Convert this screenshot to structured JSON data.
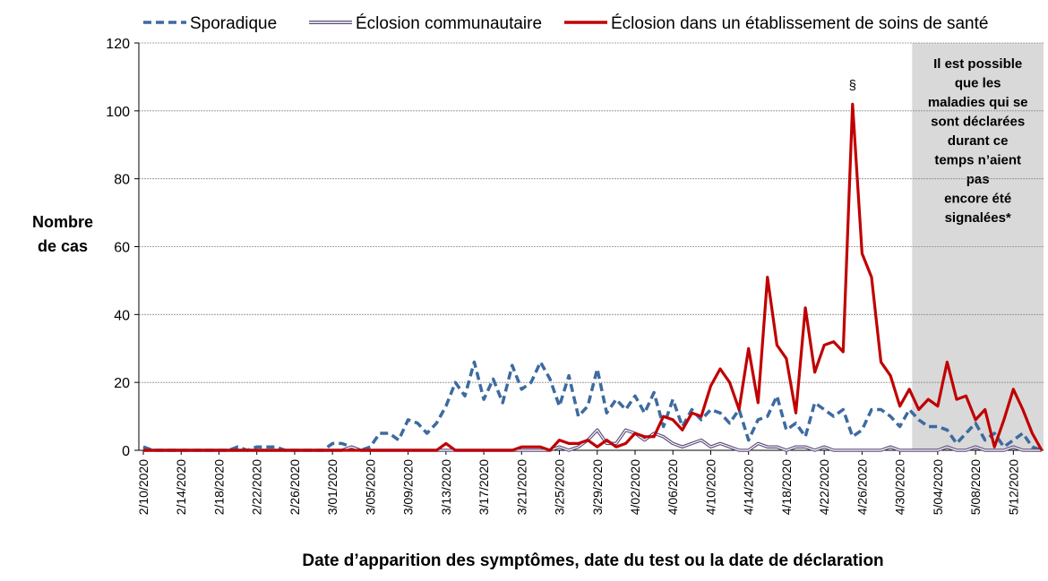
{
  "chart_data": {
    "type": "line",
    "x_label": "Date d’apparition des symptômes, date du test ou la date de déclaration",
    "y_label": [
      "Nombre",
      "de cas"
    ],
    "annotation": "§",
    "annotation_index": 75,
    "shaded_note": [
      "Il est possible",
      "que les",
      "maladies qui se",
      "sont déclarées",
      "durant ce",
      "temps n’aient",
      "pas",
      "encore été",
      "signalées*"
    ],
    "categories": [
      "2/10/2020",
      null,
      null,
      null,
      "2/14/2020",
      null,
      null,
      null,
      "2/18/2020",
      null,
      null,
      null,
      "2/22/2020",
      null,
      null,
      null,
      "2/26/2020",
      null,
      null,
      null,
      "3/01/2020",
      null,
      null,
      null,
      "3/05/2020",
      null,
      null,
      null,
      "3/09/2020",
      null,
      null,
      null,
      "3/13/2020",
      null,
      null,
      null,
      "3/17/2020",
      null,
      null,
      null,
      "3/21/2020",
      null,
      null,
      null,
      "3/25/2020",
      null,
      null,
      null,
      "3/29/2020",
      null,
      null,
      null,
      "4/02/2020",
      null,
      null,
      null,
      "4/06/2020",
      null,
      null,
      null,
      "4/10/2020",
      null,
      null,
      null,
      "4/14/2020",
      null,
      null,
      null,
      "4/18/2020",
      null,
      null,
      null,
      "4/22/2020",
      null,
      null,
      null,
      "4/26/2020",
      null,
      null,
      null,
      "4/30/2020",
      null,
      null,
      null,
      "5/04/2020",
      null,
      null,
      null,
      "5/08/2020",
      null,
      null,
      null,
      "5/12/2020",
      null,
      null,
      null
    ],
    "series": [
      {
        "name": "Sporadique",
        "color": "#3d6aa0",
        "style": "dashed",
        "values": [
          1,
          0,
          0,
          0,
          0,
          0,
          0,
          0,
          0,
          0,
          1,
          0,
          1,
          1,
          1,
          0,
          0,
          0,
          0,
          0,
          2,
          2,
          1,
          0,
          1,
          5,
          5,
          3,
          9,
          8,
          5,
          8,
          13,
          20,
          16,
          26,
          15,
          21,
          14,
          25,
          18,
          20,
          26,
          21,
          13,
          22,
          10,
          13,
          24,
          11,
          15,
          12,
          16,
          11,
          17,
          7,
          15,
          7,
          12,
          9,
          12,
          11,
          8,
          12,
          3,
          9,
          10,
          16,
          6,
          8,
          4,
          14,
          12,
          10,
          12,
          4,
          6,
          12,
          12,
          10,
          7,
          12,
          9,
          7,
          7,
          6,
          2,
          5,
          8,
          3,
          5,
          1,
          3,
          5,
          1,
          0
        ]
      },
      {
        "name": "Éclosion communautaire",
        "color": "#5b4a7a",
        "style": "double",
        "values": [
          0,
          0,
          0,
          0,
          0,
          0,
          0,
          0,
          0,
          0,
          0,
          0,
          0,
          0,
          0,
          0,
          0,
          0,
          0,
          0,
          0,
          0,
          1,
          0,
          0,
          0,
          0,
          0,
          0,
          0,
          0,
          0,
          0,
          0,
          0,
          0,
          0,
          0,
          0,
          0,
          0,
          0,
          0,
          0,
          1,
          0,
          1,
          3,
          6,
          2,
          2,
          6,
          5,
          3,
          5,
          4,
          2,
          1,
          2,
          3,
          1,
          2,
          1,
          0,
          0,
          2,
          1,
          1,
          0,
          1,
          1,
          0,
          1,
          0,
          0,
          0,
          0,
          0,
          0,
          1,
          0,
          0,
          0,
          0,
          0,
          1,
          0,
          0,
          1,
          0,
          0,
          0,
          1,
          0,
          0,
          0
        ]
      },
      {
        "name": "Éclosion dans un établissement de soins de santé",
        "color": "#c00000",
        "style": "solid",
        "values": [
          0,
          0,
          0,
          0,
          0,
          0,
          0,
          0,
          0,
          0,
          0,
          0,
          0,
          0,
          0,
          0,
          0,
          0,
          0,
          0,
          0,
          0,
          0,
          0,
          0,
          0,
          0,
          0,
          0,
          0,
          0,
          0,
          2,
          0,
          0,
          0,
          0,
          0,
          0,
          0,
          1,
          1,
          1,
          0,
          3,
          2,
          2,
          3,
          1,
          3,
          1,
          2,
          5,
          4,
          4,
          10,
          9,
          6,
          11,
          10,
          19,
          24,
          20,
          12,
          30,
          14,
          51,
          31,
          27,
          11,
          42,
          23,
          31,
          32,
          29,
          102,
          58,
          51,
          26,
          22,
          13,
          18,
          12,
          15,
          13,
          26,
          15,
          16,
          9,
          12,
          1,
          9,
          18,
          12,
          5,
          0
        ]
      }
    ],
    "ylim": [
      0,
      120
    ],
    "yticks": [
      0,
      20,
      40,
      60,
      80,
      100,
      120
    ],
    "grid": true,
    "legend": "top"
  }
}
